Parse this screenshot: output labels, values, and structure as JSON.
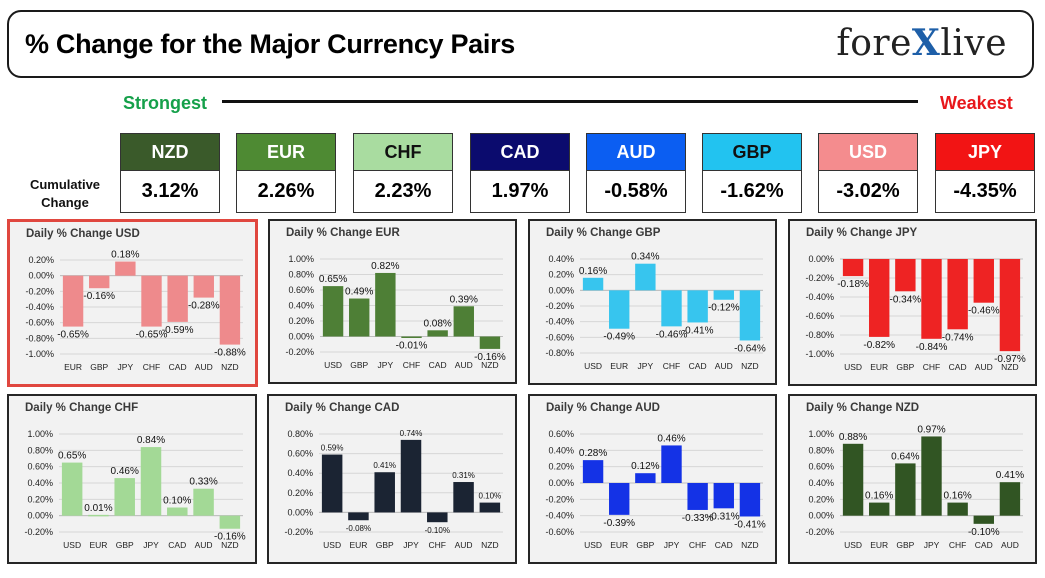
{
  "header": {
    "title": "% Change for the Major Currency Pairs",
    "brand_left": "fore",
    "brand_x": "X",
    "brand_right": "live"
  },
  "ranking": {
    "strongest_label": "Strongest",
    "weakest_label": "Weakest",
    "cumulative_label_line1": "Cumulative",
    "cumulative_label_line2": "Change",
    "items": [
      {
        "currency": "NZD",
        "value": "3.12%",
        "bg": "#3a5a2a",
        "fg": "#ffffff"
      },
      {
        "currency": "EUR",
        "value": "2.26%",
        "bg": "#4e8a33",
        "fg": "#ffffff"
      },
      {
        "currency": "CHF",
        "value": "2.23%",
        "bg": "#a9dca0",
        "fg": "#111111"
      },
      {
        "currency": "CAD",
        "value": "1.97%",
        "bg": "#0b0b6e",
        "fg": "#ffffff"
      },
      {
        "currency": "AUD",
        "value": "-0.58%",
        "bg": "#0b5ef2",
        "fg": "#ffffff"
      },
      {
        "currency": "GBP",
        "value": "-1.62%",
        "bg": "#22c3f0",
        "fg": "#111111"
      },
      {
        "currency": "USD",
        "value": "-3.02%",
        "bg": "#f48c8e",
        "fg": "#ffffff"
      },
      {
        "currency": "JPY",
        "value": "-4.35%",
        "bg": "#f21414",
        "fg": "#ffffff"
      }
    ]
  },
  "colors": {
    "USD": "#ee8a8c",
    "EUR": "#4e7f36",
    "GBP": "#37c5ee",
    "JPY": "#ee2323",
    "CHF": "#a3d996",
    "CAD": "#1b2433",
    "AUD": "#1432e6",
    "NZD": "#315523"
  },
  "chart_data": [
    {
      "type": "bar",
      "base": "USD",
      "title": "Daily % Change USD",
      "categories": [
        "EUR",
        "GBP",
        "JPY",
        "CHF",
        "CAD",
        "AUD",
        "NZD"
      ],
      "values": [
        -0.65,
        -0.16,
        0.18,
        -0.65,
        -0.59,
        -0.28,
        -0.88
      ],
      "labels": [
        "-0.65%",
        "-0.16%",
        "0.18%",
        "-0.65%",
        "-0.59%",
        "-0.28%",
        "-0.88%"
      ],
      "ylim": [
        -1.0,
        0.2
      ],
      "yticks": [
        "0.20%",
        "0.00%",
        "-0.20%",
        "-0.40%",
        "-0.60%",
        "-0.80%",
        "-1.00%"
      ],
      "ytick_values": [
        0.2,
        0,
        -0.2,
        -0.4,
        -0.6,
        -0.8,
        -1.0
      ],
      "color": "#ee8a8c"
    },
    {
      "type": "bar",
      "base": "EUR",
      "title": "Daily % Change EUR",
      "categories": [
        "USD",
        "GBP",
        "JPY",
        "CHF",
        "CAD",
        "AUD",
        "NZD"
      ],
      "values": [
        0.65,
        0.49,
        0.82,
        -0.01,
        0.08,
        0.39,
        -0.16
      ],
      "labels": [
        "0.65%",
        "0.49%",
        "0.82%",
        "-0.01%",
        "0.08%",
        "0.39%",
        "-0.16%"
      ],
      "ylim": [
        -0.2,
        1.0
      ],
      "yticks": [
        "1.00%",
        "0.80%",
        "0.60%",
        "0.40%",
        "0.20%",
        "0.00%",
        "-0.20%"
      ],
      "ytick_values": [
        1.0,
        0.8,
        0.6,
        0.4,
        0.2,
        0,
        -0.2
      ],
      "color": "#4e7f36"
    },
    {
      "type": "bar",
      "base": "GBP",
      "title": "Daily % Change GBP",
      "categories": [
        "USD",
        "EUR",
        "JPY",
        "CHF",
        "CAD",
        "AUD",
        "NZD"
      ],
      "values": [
        0.16,
        -0.49,
        0.34,
        -0.46,
        -0.41,
        -0.12,
        -0.64
      ],
      "labels": [
        "0.16%",
        "-0.49%",
        "0.34%",
        "-0.46%",
        "-0.41%",
        "-0.12%",
        "-0.64%"
      ],
      "ylim": [
        -0.8,
        0.4
      ],
      "yticks": [
        "0.40%",
        "0.20%",
        "0.00%",
        "-0.20%",
        "-0.40%",
        "-0.60%",
        "-0.80%"
      ],
      "ytick_values": [
        0.4,
        0.2,
        0,
        -0.2,
        -0.4,
        -0.6,
        -0.8
      ],
      "color": "#37c5ee"
    },
    {
      "type": "bar",
      "base": "JPY",
      "title": "Daily % Change JPY",
      "categories": [
        "USD",
        "EUR",
        "GBP",
        "CHF",
        "CAD",
        "AUD",
        "NZD"
      ],
      "values": [
        -0.18,
        -0.82,
        -0.34,
        -0.84,
        -0.74,
        -0.46,
        -0.97
      ],
      "labels": [
        "-0.18%",
        "-0.82%",
        "-0.34%",
        "-0.84%",
        "-0.74%",
        "-0.46%",
        "-0.97%"
      ],
      "ylim": [
        -1.0,
        0.0
      ],
      "yticks": [
        "0.00%",
        "-0.20%",
        "-0.40%",
        "-0.60%",
        "-0.80%",
        "-1.00%"
      ],
      "ytick_values": [
        0,
        -0.2,
        -0.4,
        -0.6,
        -0.8,
        -1.0
      ],
      "color": "#ee2323"
    },
    {
      "type": "bar",
      "base": "CHF",
      "title": "Daily % Change CHF",
      "categories": [
        "USD",
        "EUR",
        "GBP",
        "JPY",
        "CAD",
        "AUD",
        "NZD"
      ],
      "values": [
        0.65,
        0.01,
        0.46,
        0.84,
        0.1,
        0.33,
        -0.16
      ],
      "labels": [
        "0.65%",
        "0.01%",
        "0.46%",
        "0.84%",
        "0.10%",
        "0.33%",
        "-0.16%"
      ],
      "ylim": [
        -0.2,
        1.0
      ],
      "yticks": [
        "1.00%",
        "0.80%",
        "0.60%",
        "0.40%",
        "0.20%",
        "0.00%",
        "-0.20%"
      ],
      "ytick_values": [
        1.0,
        0.8,
        0.6,
        0.4,
        0.2,
        0,
        -0.2
      ],
      "color": "#a3d996"
    },
    {
      "type": "bar",
      "base": "CAD",
      "title": "Daily % Change CAD",
      "categories": [
        "USD",
        "EUR",
        "GBP",
        "JPY",
        "CHF",
        "AUD",
        "NZD"
      ],
      "values": [
        0.59,
        -0.08,
        0.41,
        0.74,
        -0.1,
        0.31,
        0.1
      ],
      "labels": [
        "0.59%",
        "-0.08%",
        "0.41%",
        "0.74%",
        "-0.10%",
        "0.31%",
        "0.10%"
      ],
      "ylim": [
        -0.2,
        0.8
      ],
      "yticks": [
        "0.80%",
        "0.60%",
        "0.40%",
        "0.20%",
        "0.00%",
        "-0.20%"
      ],
      "ytick_values": [
        0.8,
        0.6,
        0.4,
        0.2,
        0,
        -0.2
      ],
      "color": "#1b2433",
      "small_labels": true
    },
    {
      "type": "bar",
      "base": "AUD",
      "title": "Daily % Change AUD",
      "categories": [
        "USD",
        "EUR",
        "GBP",
        "JPY",
        "CHF",
        "CAD",
        "NZD"
      ],
      "values": [
        0.28,
        -0.39,
        0.12,
        0.46,
        -0.33,
        -0.31,
        -0.41
      ],
      "labels": [
        "0.28%",
        "-0.39%",
        "0.12%",
        "0.46%",
        "-0.33%",
        "-0.31%",
        "-0.41%"
      ],
      "ylim": [
        -0.6,
        0.6
      ],
      "yticks": [
        "0.60%",
        "0.40%",
        "0.20%",
        "0.00%",
        "-0.20%",
        "-0.40%",
        "-0.60%"
      ],
      "ytick_values": [
        0.6,
        0.4,
        0.2,
        0,
        -0.2,
        -0.4,
        -0.6
      ],
      "color": "#1432e6"
    },
    {
      "type": "bar",
      "base": "NZD",
      "title": "Daily % Change NZD",
      "categories": [
        "USD",
        "EUR",
        "GBP",
        "JPY",
        "CHF",
        "CAD",
        "AUD"
      ],
      "values": [
        0.88,
        0.16,
        0.64,
        0.97,
        0.16,
        -0.1,
        0.41
      ],
      "labels": [
        "0.88%",
        "0.16%",
        "0.64%",
        "0.97%",
        "0.16%",
        "-0.10%",
        "0.41%"
      ],
      "ylim": [
        -0.2,
        1.0
      ],
      "yticks": [
        "1.00%",
        "0.80%",
        "0.60%",
        "0.40%",
        "0.20%",
        "0.00%",
        "-0.20%"
      ],
      "ytick_values": [
        1.0,
        0.8,
        0.6,
        0.4,
        0.2,
        0,
        -0.2
      ],
      "color": "#315523"
    }
  ]
}
